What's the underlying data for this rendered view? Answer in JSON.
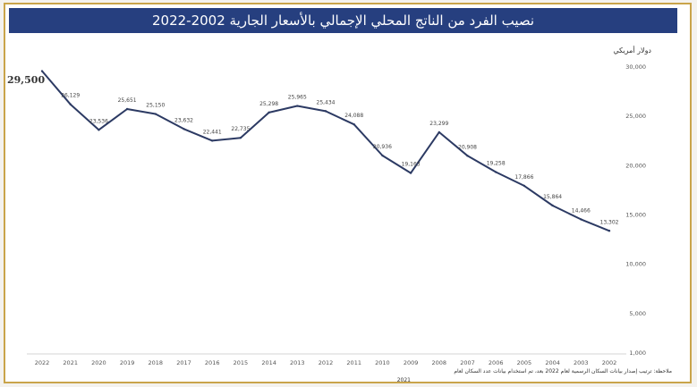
{
  "chart_data": {
    "type": "line",
    "title": "نصيب الفرد من الناتج المحلي الإجمالي بالأسعار الجارية 2002-2022",
    "ylabel": "دولار أمريكي",
    "xlabel": "",
    "categories": [
      "2022",
      "2021",
      "2020",
      "2019",
      "2018",
      "2017",
      "2016",
      "2015",
      "2014",
      "2013",
      "2012",
      "2011",
      "2010",
      "2009",
      "2008",
      "2007",
      "2006",
      "2005",
      "2004",
      "2003",
      "2002"
    ],
    "values": [
      29500,
      26129,
      23536,
      25651,
      25150,
      23632,
      22441,
      22735,
      25298,
      25965,
      25434,
      24088,
      20936,
      19163,
      23299,
      20908,
      19258,
      17866,
      15864,
      14466,
      13302
    ],
    "value_labels": [
      "29,500",
      "26,129",
      "23,536",
      "25,651",
      "25,150",
      "23,632",
      "22,441",
      "22,735",
      "25,298",
      "25,965",
      "25,434",
      "24,088",
      "20,936",
      "19,163",
      "23,299",
      "20,908",
      "19,258",
      "17,866",
      "15,864",
      "14,466",
      "13,302"
    ],
    "y_ticks": [
      1000,
      5000,
      10000,
      15000,
      20000,
      25000,
      30000
    ],
    "y_tick_labels": [
      "1,000",
      "5,000",
      "10,000",
      "15,000",
      "20,000",
      "25,000",
      "30,000"
    ],
    "ylim": [
      1000,
      30000
    ],
    "grid": false,
    "legend": "none",
    "colors": {
      "line": "#2c3a63",
      "title_bg": "#263f7f",
      "border": "#c9a44a",
      "axis_text": "#555555"
    }
  },
  "notes": [
    "ملاحظة: ترتيب إصدار بيانات السكان الرسمية لعام 2022 بعد، تم استخدام بيانات عدد السكان لعام",
    "2021"
  ]
}
